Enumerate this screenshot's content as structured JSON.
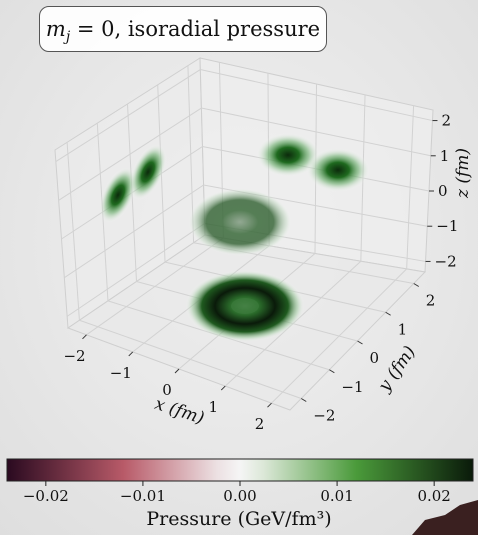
{
  "title": {
    "symbol": "m",
    "subscript": "j",
    "rest": " = 0, isoradial pressure"
  },
  "colorbar": {
    "label": "Pressure (GeV/fm³)",
    "ticks": [
      "−0.02",
      "−0.01",
      "0.00",
      "0.01",
      "0.02"
    ],
    "tick_values": [
      -0.02,
      -0.01,
      0.0,
      0.01,
      0.02
    ],
    "range": [
      -0.024,
      0.024
    ],
    "colors": {
      "min": "#2a0a20",
      "mid_neg": "#b85a68",
      "zero": "#f5f5f5",
      "mid_pos": "#4a9a3a",
      "max": "#0a1a0a"
    }
  },
  "chart_data": {
    "type": "3d-projection",
    "axes": {
      "x": {
        "label": "x (fm)",
        "ticks": [
          "−2",
          "−1",
          "0",
          "1",
          "2"
        ],
        "tick_values": [
          -2,
          -1,
          0,
          1,
          2
        ],
        "range": [
          -2.4,
          2.4
        ]
      },
      "y": {
        "label": "y (fm)",
        "ticks": [
          "−2",
          "−1",
          "0",
          "1",
          "2"
        ],
        "tick_values": [
          -2,
          -1,
          0,
          1,
          2
        ],
        "range": [
          -2.4,
          2.4
        ]
      },
      "z": {
        "label": "z (fm)",
        "ticks": [
          "−2",
          "−1",
          "0",
          "1",
          "2"
        ],
        "tick_values": [
          -2,
          -1,
          0,
          1,
          2
        ],
        "range": [
          -2.3,
          2.3
        ]
      }
    },
    "grid": true,
    "projections": [
      {
        "plane": "floor (x-y)",
        "shape": "ring",
        "center": [
          0,
          0
        ],
        "ring_radius_fm": 0.8
      },
      {
        "plane": "left wall (x-z)",
        "shape": "two lobes",
        "lobes": [
          [
            -0.5,
            -0.2
          ],
          [
            0.4,
            0.5
          ]
        ]
      },
      {
        "plane": "back wall (y-z)",
        "shape": "two lobes",
        "lobes": [
          [
            -0.55,
            0.9
          ],
          [
            0.55,
            0.9
          ]
        ]
      },
      {
        "plane": "center (3D)",
        "shape": "torus",
        "center": [
          0,
          0,
          0
        ]
      }
    ]
  }
}
